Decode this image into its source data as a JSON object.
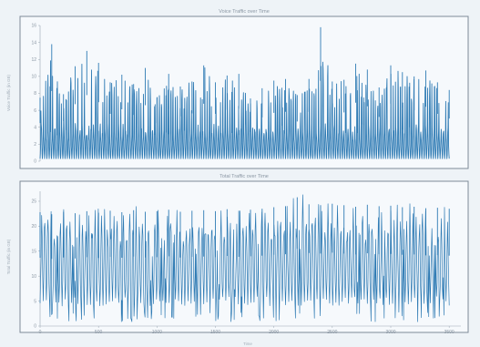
{
  "chart_data": [
    {
      "type": "line",
      "title": "Voice Traffic over Time",
      "xlabel": "",
      "ylabel": "Voice Traffic (in GB)",
      "ylim": [
        0,
        16
      ],
      "yticks": [
        "0",
        "2",
        "4",
        "6",
        "8",
        "10",
        "12",
        "14",
        "16"
      ],
      "grid": false,
      "legend": "none",
      "color": "#2f7bb4",
      "series": [
        {
          "x": [
            0,
            100,
            200,
            300,
            400,
            500,
            600,
            700,
            800,
            900,
            1000,
            1100,
            1200,
            1300,
            1400,
            1500,
            1600,
            1700,
            1800,
            1900,
            2000,
            2100,
            2200,
            2300,
            2400,
            2500,
            2600,
            2700,
            2800,
            2900,
            3000,
            3100,
            3200,
            3300,
            3400,
            3500
          ],
          "values": [
            7.5,
            13.8,
            7.9,
            11.2,
            13.0,
            11.6,
            9.3,
            10.2,
            9.1,
            11.0,
            7.5,
            10.3,
            8.8,
            9.4,
            11.3,
            9.3,
            10.1,
            10.3,
            7.4,
            8.6,
            9.5,
            9.7,
            7.8,
            9.7,
            15.8,
            9.4,
            9.6,
            11.5,
            10.8,
            8.7,
            11.3,
            10.5,
            10.0,
            10.7,
            9.3,
            8.4
          ]
        }
      ]
    },
    {
      "type": "line",
      "title": "Total Traffic over Time",
      "xlabel": "Time",
      "ylabel": "Total Traffic (in GB)",
      "ylim": [
        0,
        27
      ],
      "xlim": [
        0,
        3600
      ],
      "xticks": [
        "0",
        "500",
        "1000",
        "1500",
        "2000",
        "2500",
        "3000",
        "3500"
      ],
      "yticks": [
        "0",
        "5",
        "10",
        "15",
        "20",
        "25"
      ],
      "grid": false,
      "legend": "none",
      "color": "#2f7bb4",
      "series": [
        {
          "x": [
            0,
            100,
            200,
            300,
            400,
            500,
            600,
            700,
            800,
            900,
            1000,
            1100,
            1200,
            1300,
            1400,
            1500,
            1600,
            1700,
            1800,
            1900,
            2000,
            2100,
            2200,
            2300,
            2400,
            2500,
            2600,
            2700,
            2800,
            2900,
            3000,
            3100,
            3200,
            3300,
            3400,
            3500
          ],
          "values": [
            22.8,
            22.4,
            22.9,
            22.6,
            23.0,
            22.7,
            23.1,
            22.8,
            23.2,
            22.9,
            23.0,
            23.3,
            22.9,
            23.1,
            23.2,
            23.0,
            23.4,
            23.1,
            23.3,
            23.5,
            23.8,
            24.0,
            25.8,
            24.4,
            24.2,
            24.5,
            24.2,
            23.9,
            24.3,
            24.0,
            24.1,
            23.8,
            23.9,
            23.6,
            23.7,
            23.5
          ]
        }
      ]
    }
  ]
}
